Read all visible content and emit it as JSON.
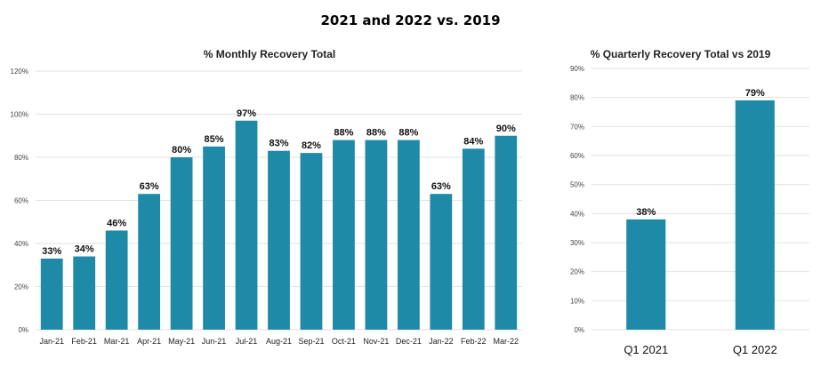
{
  "page_title": "2021 and 2022 vs. 2019",
  "colors": {
    "bar": "#1f8aa8",
    "grid": "#e2e2e2"
  },
  "chart_data": [
    {
      "type": "bar",
      "title": "% Monthly Recovery Total",
      "categories": [
        "Jan-21",
        "Feb-21",
        "Mar-21",
        "Apr-21",
        "May-21",
        "Jun-21",
        "Jul-21",
        "Aug-21",
        "Sep-21",
        "Oct-21",
        "Nov-21",
        "Dec-21",
        "Jan-22",
        "Feb-22",
        "Mar-22"
      ],
      "values": [
        33,
        34,
        46,
        63,
        80,
        85,
        97,
        83,
        82,
        88,
        88,
        88,
        63,
        84,
        90
      ],
      "data_labels": [
        "33%",
        "34%",
        "46%",
        "63%",
        "80%",
        "85%",
        "97%",
        "83%",
        "82%",
        "88%",
        "88%",
        "88%",
        "63%",
        "84%",
        "90%"
      ],
      "ylim": [
        0,
        120
      ],
      "yticks": [
        "0%",
        "20%",
        "40%",
        "60%",
        "80%",
        "100%",
        "120%"
      ],
      "ytick_values": [
        0,
        20,
        40,
        60,
        80,
        100,
        120
      ],
      "grid": true
    },
    {
      "type": "bar",
      "title": "% Quarterly Recovery Total vs 2019",
      "categories": [
        "Q1 2021",
        "Q1 2022"
      ],
      "values": [
        38,
        79
      ],
      "data_labels": [
        "38%",
        "79%"
      ],
      "ylim": [
        0,
        90
      ],
      "yticks": [
        "0%",
        "10%",
        "20%",
        "30%",
        "40%",
        "50%",
        "60%",
        "70%",
        "80%",
        "90%"
      ],
      "ytick_values": [
        0,
        10,
        20,
        30,
        40,
        50,
        60,
        70,
        80,
        90
      ],
      "grid": true
    }
  ]
}
